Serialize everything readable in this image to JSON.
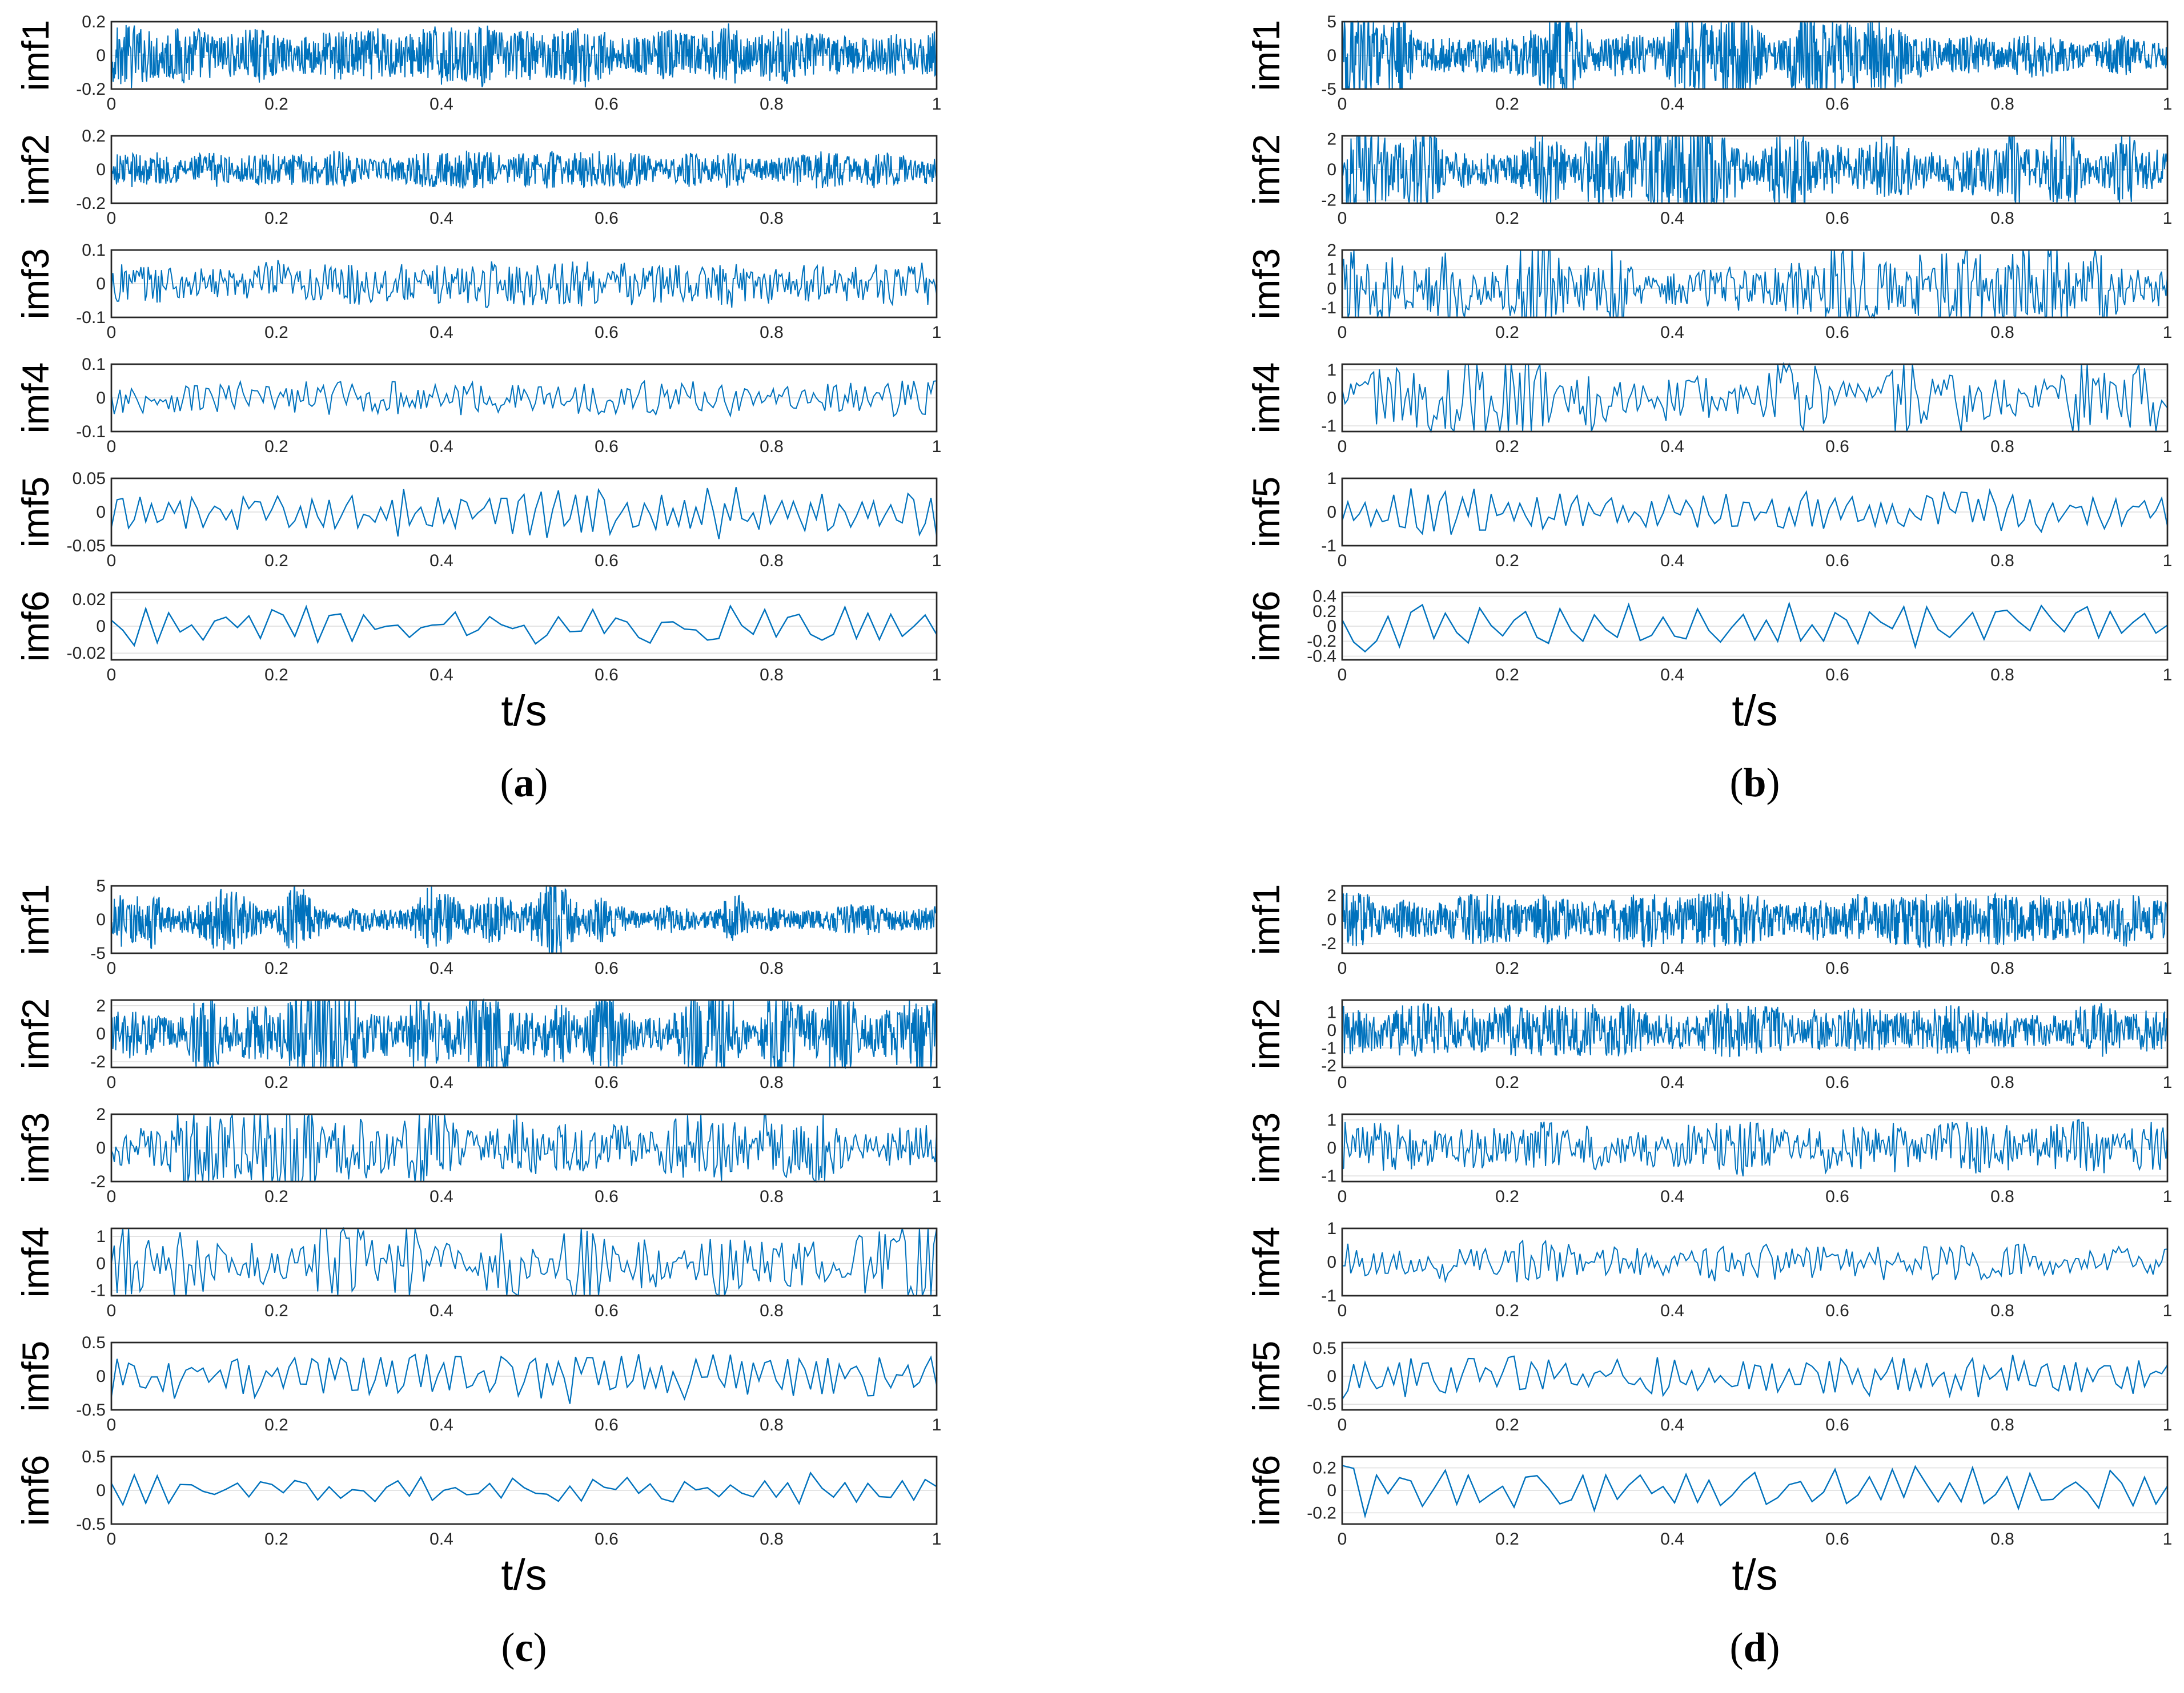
{
  "chart_data": {
    "type": "line",
    "description_axis": "time",
    "colors": {
      "series": "#0072bd",
      "axes": "#262626",
      "grid": "#dcdcdc"
    },
    "panels": [
      {
        "caption": "a",
        "xlabel": "t/s",
        "xlim": [
          0,
          1
        ],
        "xticks": [
          "0",
          "0.2",
          "0.4",
          "0.6",
          "0.8",
          "1"
        ],
        "subplots": [
          {
            "label": "imf1",
            "ylim": [
              -0.2,
              0.2
            ],
            "yticks": [
              "0.2",
              "0",
              "-0.2"
            ],
            "tickvals": [
              0.2,
              0,
              -0.2
            ],
            "amp": 0.2,
            "freq": 1200,
            "style": "dense"
          },
          {
            "label": "imf2",
            "ylim": [
              -0.2,
              0.2
            ],
            "yticks": [
              "0.2",
              "0",
              "-0.2"
            ],
            "tickvals": [
              0.2,
              0,
              -0.2
            ],
            "amp": 0.12,
            "freq": 700,
            "style": "dense"
          },
          {
            "label": "imf3",
            "ylim": [
              -0.1,
              0.1
            ],
            "yticks": [
              "0.1",
              "0",
              "-0.1"
            ],
            "tickvals": [
              0.1,
              0,
              -0.1
            ],
            "amp": 0.08,
            "freq": 350,
            "style": "dense"
          },
          {
            "label": "imf4",
            "ylim": [
              -0.1,
              0.1
            ],
            "yticks": [
              "0.1",
              "0",
              "-0.1"
            ],
            "tickvals": [
              0.1,
              0,
              -0.1
            ],
            "amp": 0.06,
            "freq": 180,
            "style": "dense"
          },
          {
            "label": "imf5",
            "ylim": [
              -0.05,
              0.05
            ],
            "yticks": [
              "0.05",
              "0",
              "-0.05"
            ],
            "tickvals": [
              0.05,
              0,
              -0.05
            ],
            "amp": 0.045,
            "freq": 90,
            "style": "mid"
          },
          {
            "label": "imf6",
            "ylim": [
              -0.025,
              0.025
            ],
            "yticks": [
              "0.02",
              "0",
              "-0.02"
            ],
            "tickvals": [
              0.02,
              0,
              -0.02
            ],
            "amp": 0.018,
            "freq": 45,
            "style": "slow"
          }
        ]
      },
      {
        "caption": "b",
        "xlabel": "t/s",
        "xlim": [
          0,
          1
        ],
        "xticks": [
          "0",
          "0.2",
          "0.4",
          "0.6",
          "0.8",
          "1"
        ],
        "subplots": [
          {
            "label": "imf1",
            "ylim": [
              -5,
              5
            ],
            "yticks": [
              "5",
              "0",
              "-5"
            ],
            "tickvals": [
              5,
              0,
              -5
            ],
            "amp": 3.5,
            "freq": 1200,
            "style": "spiky"
          },
          {
            "label": "imf2",
            "ylim": [
              -2.2,
              2.2
            ],
            "yticks": [
              "2",
              "0",
              "-2"
            ],
            "tickvals": [
              2,
              0,
              -2
            ],
            "amp": 2.0,
            "freq": 700,
            "style": "spiky"
          },
          {
            "label": "imf3",
            "ylim": [
              -1.5,
              2
            ],
            "yticks": [
              "2",
              "1",
              "0",
              "-1"
            ],
            "tickvals": [
              2,
              1,
              0,
              -1
            ],
            "amp": 1.6,
            "freq": 350,
            "style": "spiky"
          },
          {
            "label": "imf4",
            "ylim": [
              -1.2,
              1.2
            ],
            "yticks": [
              "1",
              "0",
              "-1"
            ],
            "tickvals": [
              1,
              0,
              -1
            ],
            "amp": 1.0,
            "freq": 180,
            "style": "spiky"
          },
          {
            "label": "imf5",
            "ylim": [
              -1,
              1
            ],
            "yticks": [
              "1",
              "0",
              "-1"
            ],
            "tickvals": [
              1,
              0,
              -1
            ],
            "amp": 0.85,
            "freq": 90,
            "style": "mid"
          },
          {
            "label": "imf6",
            "ylim": [
              -0.45,
              0.45
            ],
            "yticks": [
              "0.4",
              "0.2",
              "0",
              "-0.2",
              "-0.4"
            ],
            "tickvals": [
              0.4,
              0.2,
              0,
              -0.2,
              -0.4
            ],
            "amp": 0.4,
            "freq": 45,
            "style": "slow"
          }
        ]
      },
      {
        "caption": "c",
        "xlabel": "t/s",
        "xlim": [
          0,
          1
        ],
        "xticks": [
          "0",
          "0.2",
          "0.4",
          "0.6",
          "0.8",
          "1"
        ],
        "subplots": [
          {
            "label": "imf1",
            "ylim": [
              -5,
              5
            ],
            "yticks": [
              "5",
              "0",
              "-5"
            ],
            "tickvals": [
              5,
              0,
              -5
            ],
            "amp": 2.5,
            "freq": 1200,
            "style": "spiky"
          },
          {
            "label": "imf2",
            "ylim": [
              -2.4,
              2.4
            ],
            "yticks": [
              "2",
              "0",
              "-2"
            ],
            "tickvals": [
              2,
              0,
              -2
            ],
            "amp": 2.2,
            "freq": 700,
            "style": "spiky"
          },
          {
            "label": "imf3",
            "ylim": [
              -2,
              2
            ],
            "yticks": [
              "2",
              "0",
              "-2"
            ],
            "tickvals": [
              2,
              0,
              -2
            ],
            "amp": 1.5,
            "freq": 350,
            "style": "spiky"
          },
          {
            "label": "imf4",
            "ylim": [
              -1.2,
              1.3
            ],
            "yticks": [
              "1",
              "0",
              "-1"
            ],
            "tickvals": [
              1,
              0,
              -1
            ],
            "amp": 1.1,
            "freq": 180,
            "style": "spiky"
          },
          {
            "label": "imf5",
            "ylim": [
              -0.5,
              0.5
            ],
            "yticks": [
              "0.5",
              "0",
              "-0.5"
            ],
            "tickvals": [
              0.5,
              0,
              -0.5
            ],
            "amp": 0.45,
            "freq": 90,
            "style": "mid"
          },
          {
            "label": "imf6",
            "ylim": [
              -0.5,
              0.5
            ],
            "yticks": [
              "0.5",
              "0",
              "-0.5"
            ],
            "tickvals": [
              0.5,
              0,
              -0.5
            ],
            "amp": 0.3,
            "freq": 45,
            "style": "slow"
          }
        ]
      },
      {
        "caption": "d",
        "xlabel": "t/s",
        "xlim": [
          0,
          1
        ],
        "xticks": [
          "0",
          "0.2",
          "0.4",
          "0.6",
          "0.8",
          "1"
        ],
        "subplots": [
          {
            "label": "imf1",
            "ylim": [
              -2.8,
              2.8
            ],
            "yticks": [
              "2",
              "0",
              "-2"
            ],
            "tickvals": [
              2,
              0,
              -2
            ],
            "amp": 2.5,
            "freq": 1200,
            "style": "dense"
          },
          {
            "label": "imf2",
            "ylim": [
              -2.1,
              1.7
            ],
            "yticks": [
              "1",
              "0",
              "-1",
              "-2"
            ],
            "tickvals": [
              1,
              0,
              -1,
              -2
            ],
            "amp": 1.6,
            "freq": 700,
            "style": "dense"
          },
          {
            "label": "imf3",
            "ylim": [
              -1.2,
              1.2
            ],
            "yticks": [
              "1",
              "0",
              "-1"
            ],
            "tickvals": [
              1,
              0,
              -1
            ],
            "amp": 1.1,
            "freq": 350,
            "style": "dense"
          },
          {
            "label": "imf4",
            "ylim": [
              -1,
              1
            ],
            "yticks": [
              "1",
              "0",
              "-1"
            ],
            "tickvals": [
              1,
              0,
              -1
            ],
            "amp": 0.7,
            "freq": 180,
            "style": "dense"
          },
          {
            "label": "imf5",
            "ylim": [
              -0.6,
              0.6
            ],
            "yticks": [
              "0.5",
              "0",
              "-0.5"
            ],
            "tickvals": [
              0.5,
              0,
              -0.5
            ],
            "amp": 0.5,
            "freq": 90,
            "style": "mid"
          },
          {
            "label": "imf6",
            "ylim": [
              -0.3,
              0.3
            ],
            "yticks": [
              "0.2",
              "0",
              "-0.2"
            ],
            "tickvals": [
              0.2,
              0,
              -0.2
            ],
            "amp": 0.28,
            "freq": 45,
            "style": "slow"
          }
        ]
      }
    ]
  }
}
